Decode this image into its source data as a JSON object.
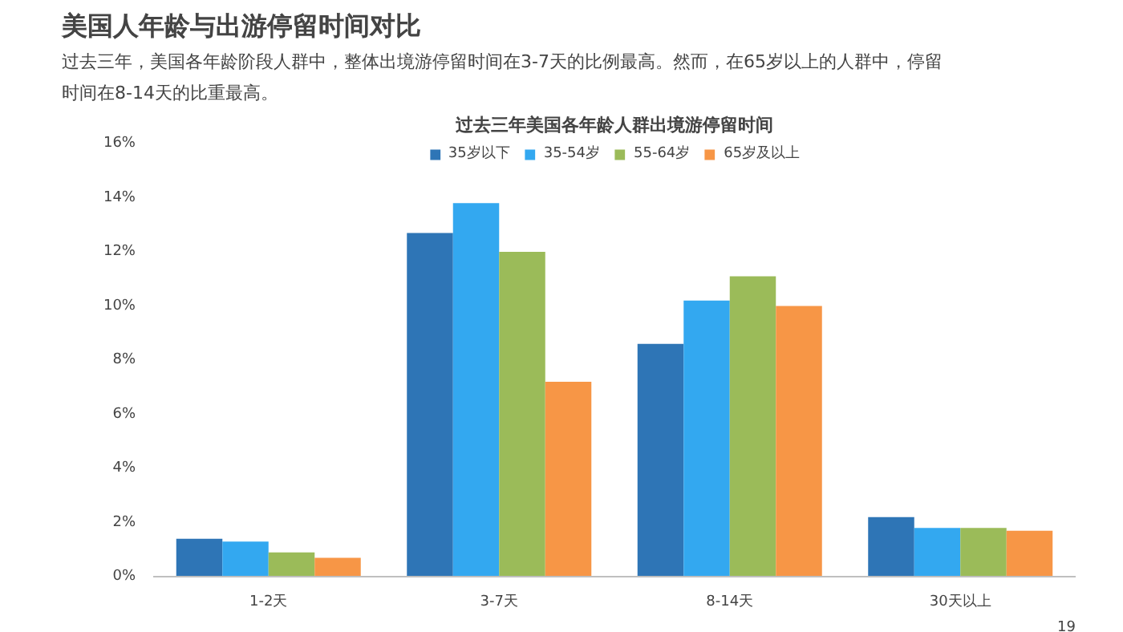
{
  "chart_data": {
    "type": "bar",
    "title": "美国人年龄与出游停留时间对比",
    "subtitle": "过去三年，美国各年龄阶段人群中，整体出境游停留时间在3-7天的比例最高。然而，在65岁以上的人群中，停留时间在8-14天的比重最高。",
    "annotations": [
      "过去三年美国各年龄人群出境游停留时间",
      "19"
    ],
    "categories": [
      "1-2天",
      "3-7天",
      "8-14天",
      "30天以上"
    ],
    "series": [
      {
        "name": "35岁以下",
        "color": "#2e75b6",
        "values": [
          1.4,
          12.7,
          8.6,
          2.2
        ]
      },
      {
        "name": "35-54岁",
        "color": "#33a8f0",
        "values": [
          1.3,
          13.8,
          10.2,
          1.8
        ]
      },
      {
        "name": "55-64岁",
        "color": "#9bbb59",
        "values": [
          0.9,
          12.0,
          11.1,
          1.8
        ]
      },
      {
        "name": "65岁及以上",
        "color": "#f79646",
        "values": [
          0.7,
          7.2,
          10.0,
          1.7
        ]
      }
    ],
    "ylim": [
      0,
      16
    ],
    "yticks": [
      {
        "value": 0,
        "label": "0%"
      },
      {
        "value": 2,
        "label": "2%"
      },
      {
        "value": 4,
        "label": "4%"
      },
      {
        "value": 6,
        "label": "6%"
      },
      {
        "value": 8,
        "label": "8%"
      },
      {
        "value": 10,
        "label": "10%"
      },
      {
        "value": 12,
        "label": "12%"
      },
      {
        "value": 14,
        "label": "14%"
      },
      {
        "value": 16,
        "label": "16%"
      }
    ],
    "grid": false,
    "legend": "top"
  }
}
